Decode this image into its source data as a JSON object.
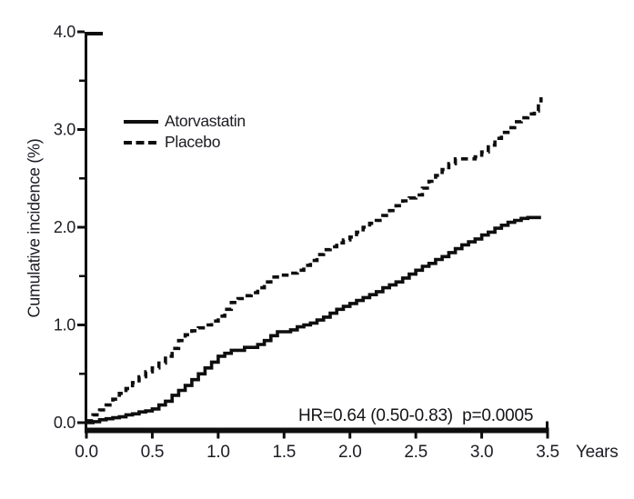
{
  "chart_data": {
    "type": "line",
    "title": "",
    "xlabel": "Years",
    "ylabel": "Cumulative incidence (%)",
    "xlim": [
      0,
      3.5
    ],
    "ylim": [
      0,
      4.0
    ],
    "x_ticks": [
      "0.0",
      "0.5",
      "1.0",
      "1.5",
      "2.0",
      "2.5",
      "3.0",
      "3.5"
    ],
    "y_ticks": [
      "0.0",
      "1.0",
      "2.0",
      "3.0",
      "4.0"
    ],
    "y_minor_ticks": [
      0.5,
      1.5,
      2.5,
      3.5
    ],
    "grid": false,
    "step_interpolation": true,
    "legend_position": "upper-left-inside",
    "annotation": "HR=0.64 (0.50-0.83)  p=0.0005",
    "line_color": "#0e0e0e",
    "series": [
      {
        "name": "Atorvastatin",
        "line_style": "solid",
        "points": [
          [
            0,
            0
          ],
          [
            0.05,
            0.01
          ],
          [
            0.1,
            0.03
          ],
          [
            0.15,
            0.04
          ],
          [
            0.2,
            0.05
          ],
          [
            0.25,
            0.06
          ],
          [
            0.3,
            0.08
          ],
          [
            0.35,
            0.09
          ],
          [
            0.4,
            0.11
          ],
          [
            0.45,
            0.12
          ],
          [
            0.5,
            0.14
          ],
          [
            0.55,
            0.18
          ],
          [
            0.6,
            0.22
          ],
          [
            0.65,
            0.28
          ],
          [
            0.7,
            0.33
          ],
          [
            0.75,
            0.38
          ],
          [
            0.8,
            0.44
          ],
          [
            0.85,
            0.5
          ],
          [
            0.9,
            0.56
          ],
          [
            0.95,
            0.62
          ],
          [
            1.0,
            0.68
          ],
          [
            1.05,
            0.71
          ],
          [
            1.1,
            0.74
          ],
          [
            1.2,
            0.77
          ],
          [
            1.3,
            0.8
          ],
          [
            1.35,
            0.84
          ],
          [
            1.4,
            0.89
          ],
          [
            1.45,
            0.93
          ],
          [
            1.55,
            0.95
          ],
          [
            1.6,
            0.98
          ],
          [
            1.65,
            1.0
          ],
          [
            1.7,
            1.02
          ],
          [
            1.75,
            1.05
          ],
          [
            1.8,
            1.08
          ],
          [
            1.85,
            1.12
          ],
          [
            1.9,
            1.16
          ],
          [
            1.95,
            1.19
          ],
          [
            2.0,
            1.22
          ],
          [
            2.05,
            1.25
          ],
          [
            2.1,
            1.28
          ],
          [
            2.15,
            1.31
          ],
          [
            2.2,
            1.34
          ],
          [
            2.25,
            1.38
          ],
          [
            2.3,
            1.41
          ],
          [
            2.35,
            1.44
          ],
          [
            2.4,
            1.48
          ],
          [
            2.45,
            1.52
          ],
          [
            2.5,
            1.56
          ],
          [
            2.55,
            1.6
          ],
          [
            2.6,
            1.63
          ],
          [
            2.65,
            1.67
          ],
          [
            2.7,
            1.7
          ],
          [
            2.75,
            1.74
          ],
          [
            2.8,
            1.78
          ],
          [
            2.85,
            1.82
          ],
          [
            2.9,
            1.85
          ],
          [
            2.95,
            1.88
          ],
          [
            3.0,
            1.92
          ],
          [
            3.05,
            1.95
          ],
          [
            3.1,
            1.99
          ],
          [
            3.15,
            2.02
          ],
          [
            3.2,
            2.05
          ],
          [
            3.25,
            2.07
          ],
          [
            3.3,
            2.09
          ],
          [
            3.35,
            2.1
          ],
          [
            3.45,
            2.1
          ]
        ]
      },
      {
        "name": "Placebo",
        "line_style": "dashed",
        "points": [
          [
            0,
            0.02
          ],
          [
            0.05,
            0.08
          ],
          [
            0.1,
            0.13
          ],
          [
            0.15,
            0.18
          ],
          [
            0.2,
            0.24
          ],
          [
            0.25,
            0.3
          ],
          [
            0.3,
            0.35
          ],
          [
            0.35,
            0.41
          ],
          [
            0.4,
            0.47
          ],
          [
            0.45,
            0.52
          ],
          [
            0.5,
            0.56
          ],
          [
            0.55,
            0.61
          ],
          [
            0.6,
            0.68
          ],
          [
            0.65,
            0.76
          ],
          [
            0.7,
            0.84
          ],
          [
            0.75,
            0.9
          ],
          [
            0.8,
            0.94
          ],
          [
            0.85,
            0.97
          ],
          [
            0.9,
            1.0
          ],
          [
            0.95,
            1.04
          ],
          [
            1.0,
            1.09
          ],
          [
            1.05,
            1.16
          ],
          [
            1.1,
            1.23
          ],
          [
            1.15,
            1.27
          ],
          [
            1.2,
            1.3
          ],
          [
            1.25,
            1.33
          ],
          [
            1.3,
            1.38
          ],
          [
            1.35,
            1.44
          ],
          [
            1.4,
            1.49
          ],
          [
            1.45,
            1.51
          ],
          [
            1.55,
            1.53
          ],
          [
            1.6,
            1.56
          ],
          [
            1.65,
            1.61
          ],
          [
            1.7,
            1.66
          ],
          [
            1.75,
            1.72
          ],
          [
            1.8,
            1.77
          ],
          [
            1.85,
            1.8
          ],
          [
            1.9,
            1.84
          ],
          [
            1.95,
            1.87
          ],
          [
            2.0,
            1.9
          ],
          [
            2.05,
            1.95
          ],
          [
            2.1,
            2.0
          ],
          [
            2.15,
            2.04
          ],
          [
            2.2,
            2.07
          ],
          [
            2.25,
            2.12
          ],
          [
            2.3,
            2.17
          ],
          [
            2.35,
            2.22
          ],
          [
            2.4,
            2.27
          ],
          [
            2.45,
            2.3
          ],
          [
            2.5,
            2.33
          ],
          [
            2.55,
            2.4
          ],
          [
            2.6,
            2.47
          ],
          [
            2.65,
            2.53
          ],
          [
            2.7,
            2.59
          ],
          [
            2.75,
            2.65
          ],
          [
            2.8,
            2.7
          ],
          [
            2.95,
            2.72
          ],
          [
            3.0,
            2.77
          ],
          [
            3.05,
            2.84
          ],
          [
            3.1,
            2.91
          ],
          [
            3.15,
            2.97
          ],
          [
            3.2,
            3.02
          ],
          [
            3.25,
            3.08
          ],
          [
            3.3,
            3.12
          ],
          [
            3.35,
            3.16
          ],
          [
            3.4,
            3.19
          ],
          [
            3.43,
            3.27
          ],
          [
            3.45,
            3.33
          ]
        ]
      }
    ]
  }
}
